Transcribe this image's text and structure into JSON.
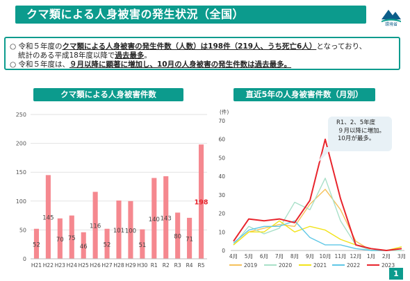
{
  "header": {
    "title": "クマ類による人身被害の発生状況（全国）",
    "logo_text": "環境省"
  },
  "summary": {
    "line1_a": "○ 令和５年度の",
    "line1_b": "クマ類による人身被害の発生件数（人数）は198件（219人、うち死亡6人）",
    "line1_c": "となっており、",
    "line2_a": "統計のある平成18年度以降で",
    "line2_b": "過去最多",
    "line2_c": "。",
    "line3_a": "○ 令和５年度は、",
    "line3_b": "９月以降に顕著に増加し、10月の人身被害の発生件数は過去最多。"
  },
  "left_panel": {
    "title": "クマ類による人身被害件数"
  },
  "right_panel": {
    "title": "直近5年の人身被害件数（月別）"
  },
  "callout": {
    "lines": [
      "R1、2、5年度",
      "９月以降に増加。",
      "10月が最多。"
    ]
  },
  "page_number": "1",
  "chart_data": [
    {
      "type": "bar",
      "categories": [
        "H21",
        "H22",
        "H23",
        "H24",
        "H25",
        "H26",
        "H27",
        "H28",
        "H29",
        "H30",
        "R1",
        "R2",
        "R3",
        "R4",
        "R5"
      ],
      "values": [
        52,
        145,
        70,
        75,
        46,
        116,
        52,
        101,
        100,
        51,
        140,
        143,
        80,
        71,
        198
      ],
      "ylim": [
        0,
        250
      ],
      "yticks": [
        0,
        50,
        100,
        150,
        200,
        250
      ],
      "color": "#f5888f",
      "highlight_color": "#e8242c"
    },
    {
      "type": "line",
      "ylabel": "(件)",
      "ylim": [
        0,
        70
      ],
      "yticks": [
        0,
        10,
        20,
        30,
        40,
        50,
        60,
        70
      ],
      "categories": [
        "4月",
        "5月",
        "6月",
        "7月",
        "8月",
        "9月",
        "10月",
        "11月",
        "12月",
        "1月",
        "2月",
        "3月"
      ],
      "legend_position": "bottom",
      "series": [
        {
          "name": "2019",
          "color": "#f5c15a",
          "values": [
            3,
            10,
            12,
            14,
            13,
            25,
            33,
            22,
            5,
            0,
            0,
            1
          ]
        },
        {
          "name": "2020",
          "color": "#a8e0c8",
          "values": [
            3,
            13,
            9,
            12,
            26,
            22,
            39,
            16,
            3,
            0,
            0,
            0
          ]
        },
        {
          "name": "2021",
          "color": "#f2e31a",
          "values": [
            3,
            10,
            10,
            16,
            10,
            13,
            11,
            6,
            3,
            1,
            0,
            2
          ]
        },
        {
          "name": "2022",
          "color": "#5ec7e6",
          "values": [
            4,
            11,
            13,
            13,
            16,
            7,
            3,
            3,
            1,
            0,
            0,
            1
          ]
        },
        {
          "name": "2023",
          "color": "#e8242c",
          "values": [
            5,
            17,
            16,
            17,
            15,
            27,
            60,
            28,
            3,
            1,
            0,
            1
          ]
        }
      ]
    }
  ]
}
